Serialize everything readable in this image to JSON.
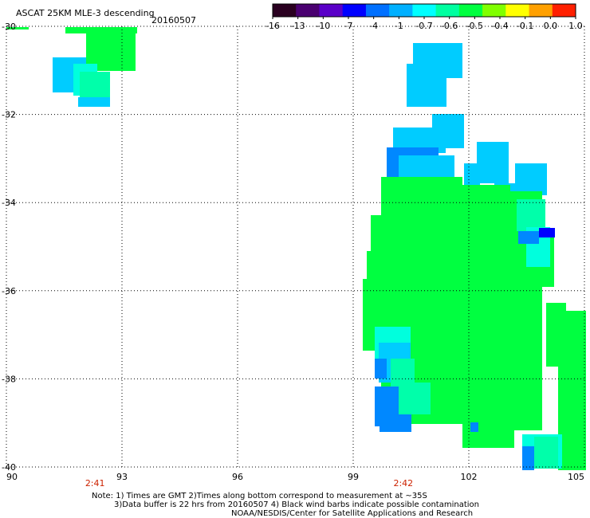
{
  "title": "ASCAT 25KM MLE-3 descending",
  "date": "20160507",
  "colorbar": {
    "labels": [
      "-16",
      "-13",
      "-10",
      "-7",
      "-4",
      "-1",
      "-0.7",
      "-0.6",
      "-0.5",
      "-0.4",
      "-0.1",
      "0.0",
      "1.0"
    ],
    "colors": [
      "#2a0020",
      "#4a0070",
      "#5a00c8",
      "#0000ff",
      "#0070ff",
      "#00b0ff",
      "#00ffff",
      "#00ffa0",
      "#00ff40",
      "#80ff00",
      "#ffff00",
      "#ffa000",
      "#ff2000"
    ]
  },
  "map": {
    "lon_ticks": [
      "90",
      "93",
      "96",
      "99",
      "102",
      "105"
    ],
    "lat_ticks": [
      "-30",
      "-32",
      "-34",
      "-36",
      "-38",
      "-40"
    ],
    "lon_range": [
      90,
      105
    ],
    "lat_range": [
      -40,
      -30
    ],
    "time_labels": [
      {
        "text": "2:41",
        "lon": 92.3
      },
      {
        "text": "2:42",
        "lon": 100.3
      }
    ]
  },
  "colors": {
    "green": "#00ff40",
    "light_blue": "#00ccff",
    "cyan": "#00ffdd",
    "mid_blue": "#0088ff",
    "dark_blue": "#0000ff",
    "teal": "#00ffaa"
  },
  "note": {
    "line1": "Note: 1) Times are GMT 2)Times along bottom correspond to measurement at ~35S",
    "line2": "3)Data buffer is 22 hrs from 20160507 4) Black wind barbs indicate possible contamination",
    "line3": "NOAA/NESDIS/Center for Satellite Applications and Research"
  }
}
